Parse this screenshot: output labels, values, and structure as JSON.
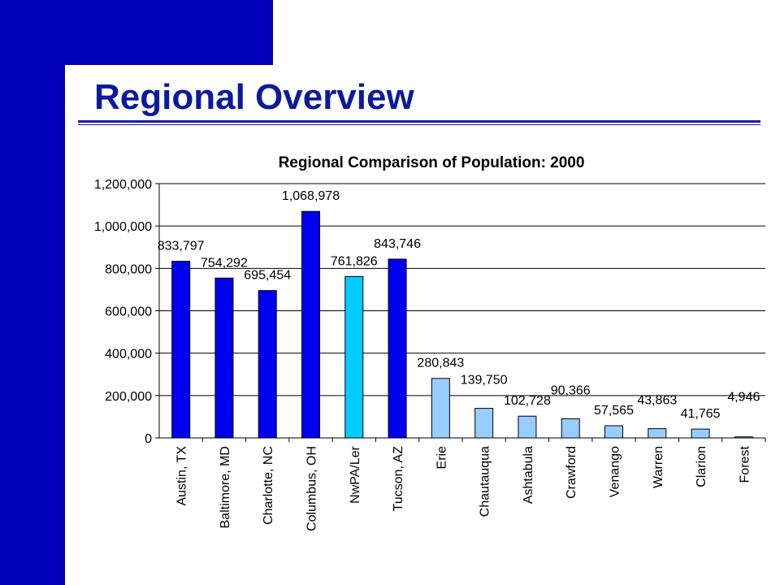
{
  "slide": {
    "title": "Regional Overview"
  },
  "colors": {
    "band": "#0000b8",
    "title": "#0d1a9e",
    "peer_city": "#0000ee",
    "region": "#00ccff",
    "county": "#99ccff"
  },
  "chart_data": {
    "type": "bar",
    "title": "Regional Comparison of Population: 2000",
    "xlabel": "",
    "ylabel": "",
    "categories": [
      "Austin, TX",
      "Baltimore, MD",
      "Charlotte, NC",
      "Columbus, OH",
      "NwPA/Ler",
      "Tucson, AZ",
      "Erie",
      "Chautauqua",
      "Ashtabula",
      "Crawford",
      "Venango",
      "Warren",
      "Clarion",
      "Forest"
    ],
    "values": [
      833797,
      754292,
      695454,
      1068978,
      761826,
      843746,
      280843,
      139750,
      102728,
      90366,
      57565,
      43863,
      41765,
      4946
    ],
    "value_labels": [
      "833,797",
      "754,292",
      "695,454",
      "1,068,978",
      "761,826",
      "843,746",
      "280,843",
      "139,750",
      "102,728",
      "90,366",
      "57,565",
      "43,863",
      "41,765",
      "4,946"
    ],
    "bar_colors": [
      "#0000ee",
      "#0000ee",
      "#0000ee",
      "#0000ee",
      "#00ccff",
      "#0000ee",
      "#99ccff",
      "#99ccff",
      "#99ccff",
      "#99ccff",
      "#99ccff",
      "#99ccff",
      "#99ccff",
      "#99ccff"
    ],
    "ylim": [
      0,
      1200000
    ],
    "yticks": [
      0,
      200000,
      400000,
      600000,
      800000,
      1000000,
      1200000
    ],
    "ytick_labels": [
      "0",
      "200,000",
      "400,000",
      "600,000",
      "800,000",
      "1,000,000",
      "1,200,000"
    ],
    "grid": true,
    "legend": "none"
  }
}
